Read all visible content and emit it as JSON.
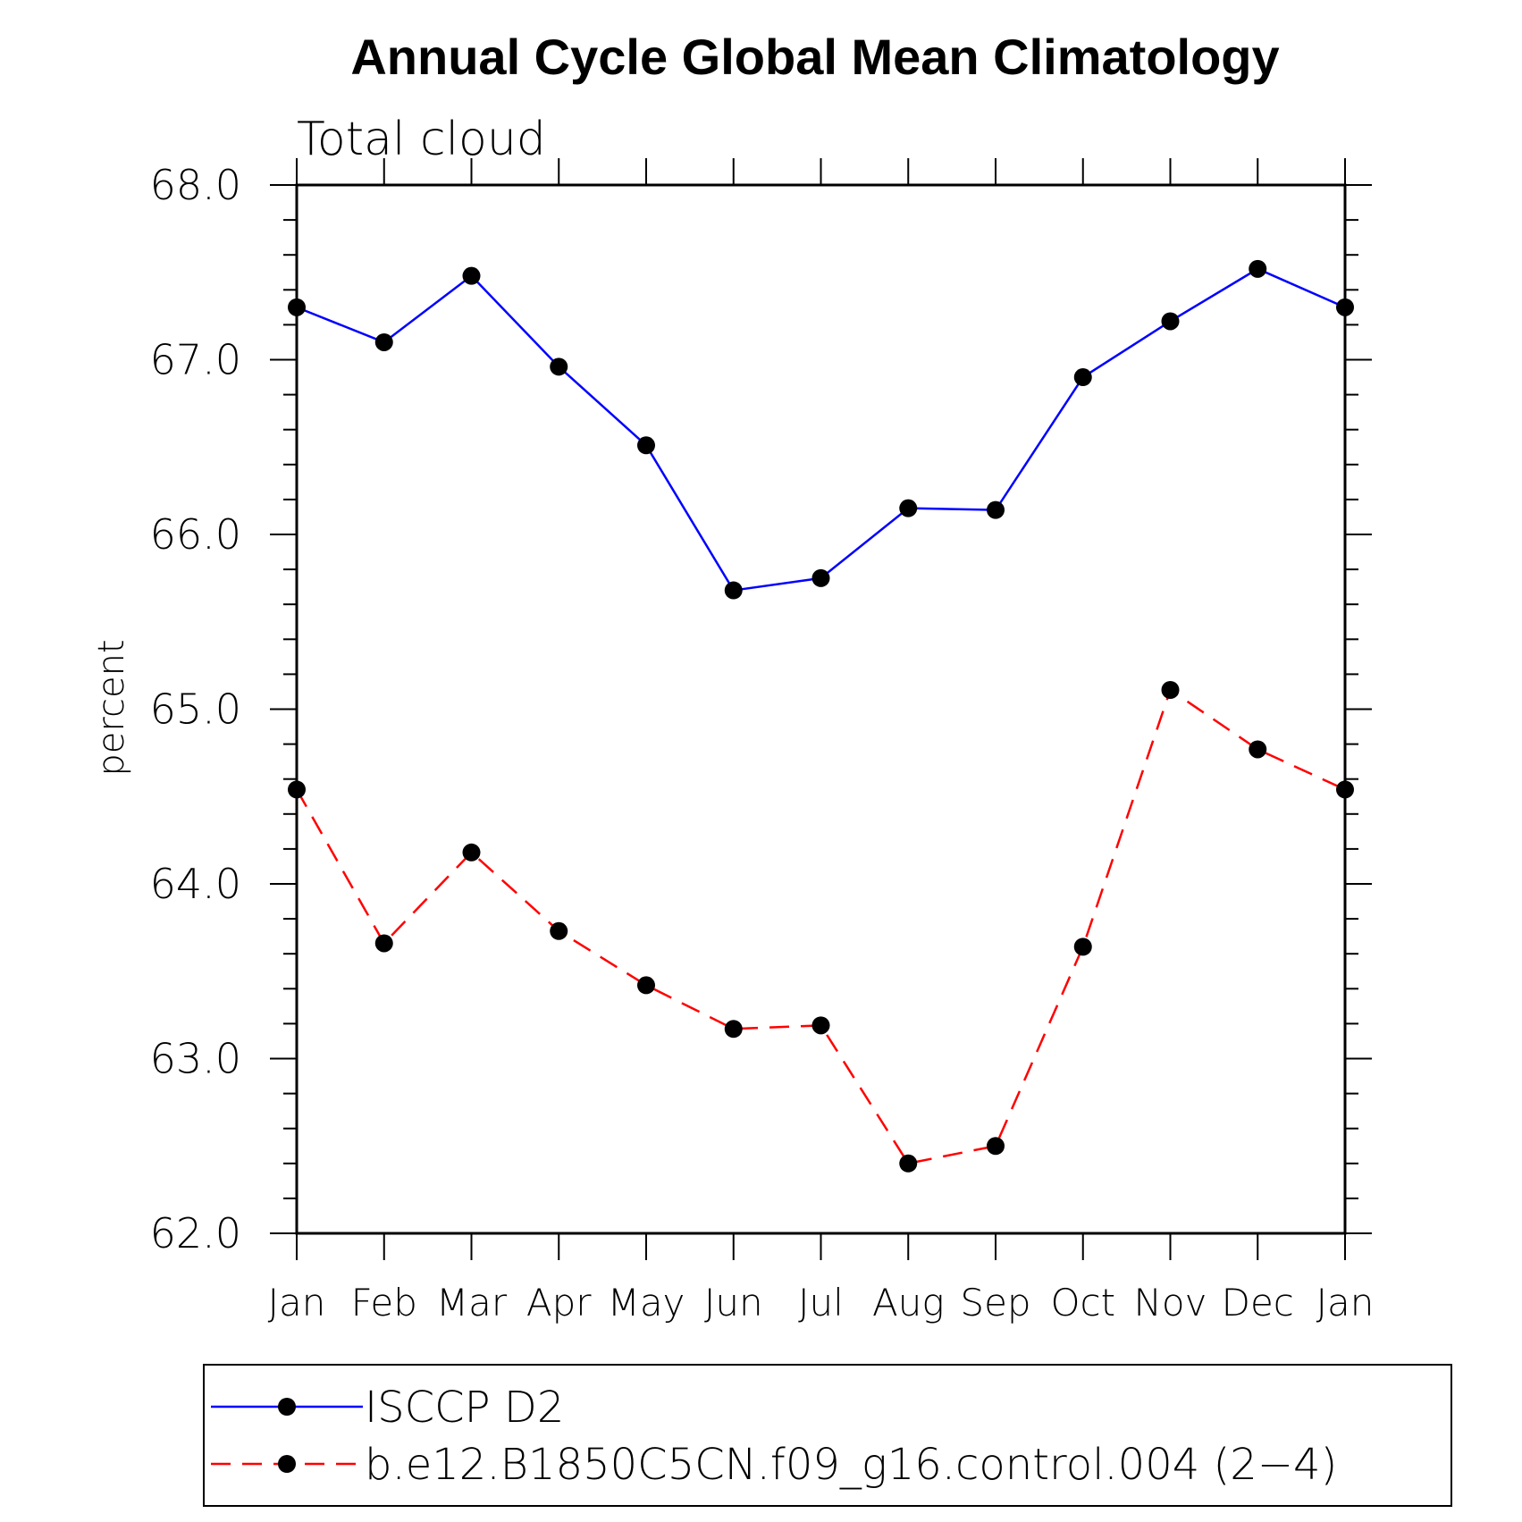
{
  "chart_data": {
    "type": "line",
    "title": "Annual Cycle Global Mean Climatology",
    "subtitle": "Total cloud",
    "xlabel": "",
    "ylabel": "percent",
    "categories": [
      "Jan",
      "Feb",
      "Mar",
      "Apr",
      "May",
      "Jun",
      "Jul",
      "Aug",
      "Sep",
      "Oct",
      "Nov",
      "Dec",
      "Jan"
    ],
    "ylim": [
      62.0,
      68.0
    ],
    "yticks": [
      "62.0",
      "63.0",
      "64.0",
      "65.0",
      "66.0",
      "67.0",
      "68.0"
    ],
    "y_minor_step": 0.2,
    "grid": false,
    "legend_position": "bottom",
    "series": [
      {
        "name": "ISCCP D2",
        "color": "#0000ff",
        "line_style": "solid",
        "marker": "filled-circle",
        "values": [
          67.3,
          67.1,
          67.48,
          66.96,
          66.51,
          65.68,
          65.75,
          66.15,
          66.14,
          66.9,
          67.22,
          67.52,
          67.3
        ]
      },
      {
        "name": "b.e12.B1850C5CN.f09_g16.control.004 (2−4)",
        "color": "#ff0000",
        "line_style": "dashed",
        "marker": "filled-circle",
        "values": [
          64.54,
          63.66,
          64.18,
          63.73,
          63.42,
          63.17,
          63.19,
          62.4,
          62.5,
          63.64,
          65.11,
          64.77,
          64.54
        ]
      }
    ]
  }
}
